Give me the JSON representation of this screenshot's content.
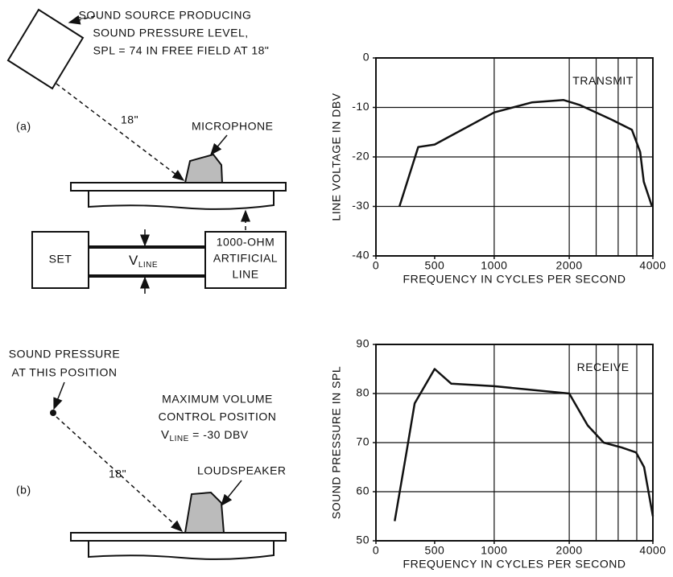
{
  "diagram": {
    "a": {
      "label": "(a)",
      "source_label": [
        "SOUND SOURCE PRODUCING",
        "SOUND PRESSURE LEVEL,",
        "SPL = 74 IN FREE FIELD AT 18\""
      ],
      "distance": "18\"",
      "microphone": "MICROPHONE",
      "set": "SET",
      "vline": {
        "v": "V",
        "sub": "LINE"
      },
      "line_box": [
        "1000-OHM",
        "ARTIFICIAL",
        "LINE"
      ]
    },
    "b": {
      "label": "(b)",
      "pressure_label": [
        "SOUND PRESSURE",
        "AT THIS POSITION"
      ],
      "control_label": [
        "MAXIMUM VOLUME",
        "CONTROL POSITION"
      ],
      "vline": {
        "v": "V",
        "sub": "LINE",
        "rest": " = -30 DBV"
      },
      "distance": "18\"",
      "loudspeaker": "LOUDSPEAKER"
    }
  },
  "chart_data": [
    {
      "type": "line",
      "annotation": "TRANSMIT",
      "ylabel": "LINE VOLTAGE IN DBV",
      "xlabel": "FREQUENCY IN CYCLES PER SECOND",
      "x": [
        200,
        360,
        500,
        1000,
        1500,
        1925,
        2180,
        2850,
        3360,
        3600,
        3710,
        3970
      ],
      "values": [
        -30,
        -18,
        -17.5,
        -11,
        -9,
        -8.5,
        -9.5,
        -12.5,
        -14.5,
        -19,
        -25,
        -30
      ],
      "xlim": [
        0,
        4000
      ],
      "xticks": [
        0,
        500,
        1000,
        2000,
        4000
      ],
      "xgrid": [
        1000,
        2000,
        2500,
        3000,
        3500
      ],
      "ylim": [
        -40,
        0
      ],
      "yticks": [
        -40,
        -30,
        -20,
        -10,
        0
      ],
      "grid": true,
      "color": "#111111"
    },
    {
      "type": "line",
      "annotation": "RECEIVE",
      "ylabel": "SOUND PRESSURE IN SPL",
      "xlabel": "FREQUENCY IN CYCLES PER SECOND",
      "x": [
        160,
        260,
        330,
        500,
        640,
        1000,
        2000,
        2330,
        2660,
        3090,
        3480,
        3720,
        4000
      ],
      "values": [
        54,
        68,
        78,
        85,
        82,
        81.5,
        80,
        73.5,
        70,
        69,
        68,
        65,
        55
      ],
      "xlim": [
        0,
        4000
      ],
      "xticks": [
        0,
        500,
        1000,
        2000,
        4000
      ],
      "xgrid": [
        1000,
        2000,
        2500,
        3000,
        3500
      ],
      "ylim": [
        50,
        90
      ],
      "yticks": [
        50,
        60,
        70,
        80,
        90
      ],
      "grid": true,
      "color": "#111111"
    }
  ]
}
